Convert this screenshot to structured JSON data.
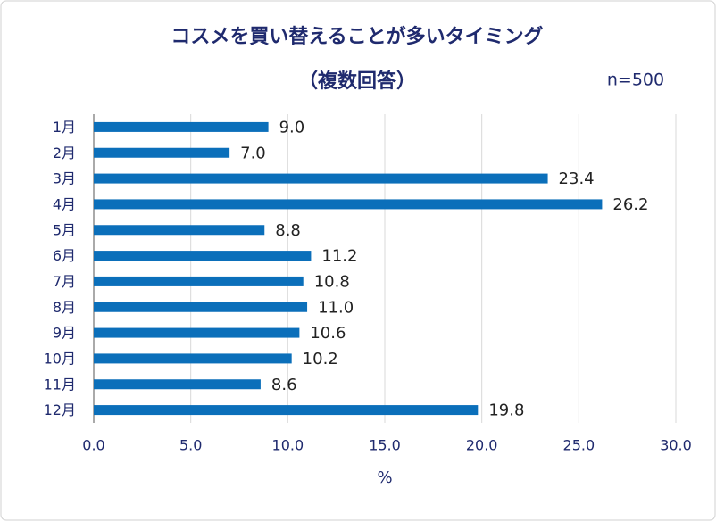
{
  "chart_data": {
    "type": "bar",
    "orientation": "horizontal",
    "title": "コスメを買い替えることが多いタイミング",
    "subtitle": "（複数回答）",
    "annotation": "n=500",
    "xlabel": "%",
    "categories": [
      "1月",
      "2月",
      "3月",
      "4月",
      "5月",
      "6月",
      "7月",
      "8月",
      "9月",
      "10月",
      "11月",
      "12月"
    ],
    "values": [
      9.0,
      7.0,
      23.4,
      26.2,
      8.8,
      11.2,
      10.8,
      11.0,
      10.6,
      10.2,
      8.6,
      19.8
    ],
    "value_labels": [
      "9.0",
      "7.0",
      "23.4",
      "26.2",
      "8.8",
      "11.2",
      "10.8",
      "11.0",
      "10.6",
      "10.2",
      "8.6",
      "19.8"
    ],
    "color": "#0b6fba",
    "xlim": [
      0,
      30
    ],
    "xticks": [
      {
        "value": 0,
        "label": "0.0"
      },
      {
        "value": 5,
        "label": "5.0"
      },
      {
        "value": 10,
        "label": "10.0"
      },
      {
        "value": 15,
        "label": "15.0"
      },
      {
        "value": 20,
        "label": "20.0"
      },
      {
        "value": 25,
        "label": "25.0"
      },
      {
        "value": 30,
        "label": "30.0"
      }
    ],
    "grid": true
  }
}
